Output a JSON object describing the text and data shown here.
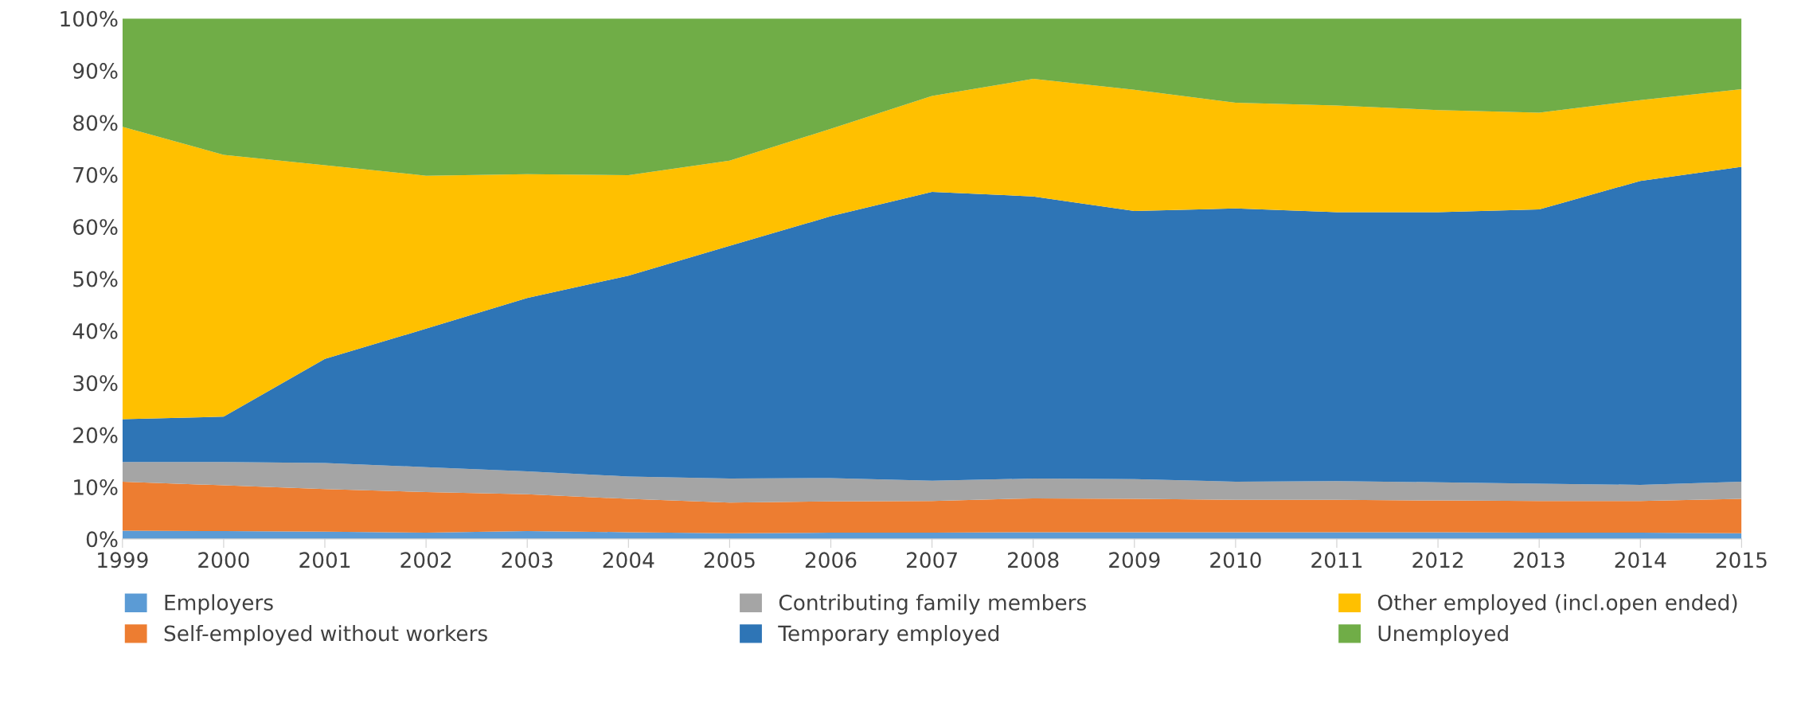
{
  "chart_data": {
    "type": "area",
    "stacked": true,
    "categories": [
      "1999",
      "2000",
      "2001",
      "2002",
      "2003",
      "2004",
      "2005",
      "2006",
      "2007",
      "2008",
      "2009",
      "2010",
      "2011",
      "2012",
      "2013",
      "2014",
      "2015"
    ],
    "series": [
      {
        "name": "Employers",
        "color": "#5b9bd5",
        "values": [
          1.6,
          1.5,
          1.4,
          1.2,
          1.5,
          1.3,
          1.1,
          1.2,
          1.2,
          1.3,
          1.3,
          1.3,
          1.3,
          1.3,
          1.2,
          1.2,
          1.1
        ]
      },
      {
        "name": "Self-employed without workers",
        "color": "#ed7d31",
        "values": [
          9.4,
          8.8,
          8.2,
          7.8,
          7.1,
          6.4,
          5.9,
          6.0,
          6.1,
          6.5,
          6.4,
          6.2,
          6.2,
          6.1,
          6.1,
          6.1,
          6.6
        ]
      },
      {
        "name": "Contributing family members",
        "color": "#a5a5a5",
        "values": [
          3.8,
          4.5,
          5.0,
          4.8,
          4.4,
          4.3,
          4.6,
          4.5,
          3.9,
          3.8,
          3.8,
          3.5,
          3.6,
          3.5,
          3.3,
          3.1,
          3.3
        ]
      },
      {
        "name": "Temporary employed",
        "color": "#2e75b6",
        "values": [
          8.2,
          8.7,
          20.0,
          26.6,
          33.3,
          38.6,
          44.7,
          50.3,
          55.5,
          54.2,
          51.5,
          52.5,
          51.7,
          51.9,
          52.7,
          58.4,
          60.5
        ]
      },
      {
        "name": "Other employed (incl.open ended)",
        "color": "#ffc000",
        "values": [
          56.2,
          50.3,
          37.2,
          29.4,
          23.8,
          19.3,
          16.4,
          16.8,
          18.4,
          22.6,
          23.3,
          20.3,
          20.5,
          19.6,
          18.6,
          15.5,
          14.9
        ]
      },
      {
        "name": "Unemployed",
        "color": "#70ad47",
        "values": [
          20.8,
          26.2,
          28.2,
          30.2,
          29.9,
          30.1,
          27.3,
          21.2,
          14.9,
          11.6,
          13.7,
          16.2,
          16.7,
          17.6,
          18.1,
          15.7,
          13.6
        ]
      }
    ],
    "ylim": [
      0,
      100
    ],
    "yticks": [
      {
        "value": 0,
        "label": "0%"
      },
      {
        "value": 10,
        "label": "10%"
      },
      {
        "value": 20,
        "label": "20%"
      },
      {
        "value": 30,
        "label": "30%"
      },
      {
        "value": 40,
        "label": "40%"
      },
      {
        "value": 50,
        "label": "50%"
      },
      {
        "value": 60,
        "label": "60%"
      },
      {
        "value": 70,
        "label": "70%"
      },
      {
        "value": 80,
        "label": "80%"
      },
      {
        "value": 90,
        "label": "90%"
      },
      {
        "value": 100,
        "label": "100%"
      }
    ],
    "grid": false,
    "legend": "bottom"
  }
}
